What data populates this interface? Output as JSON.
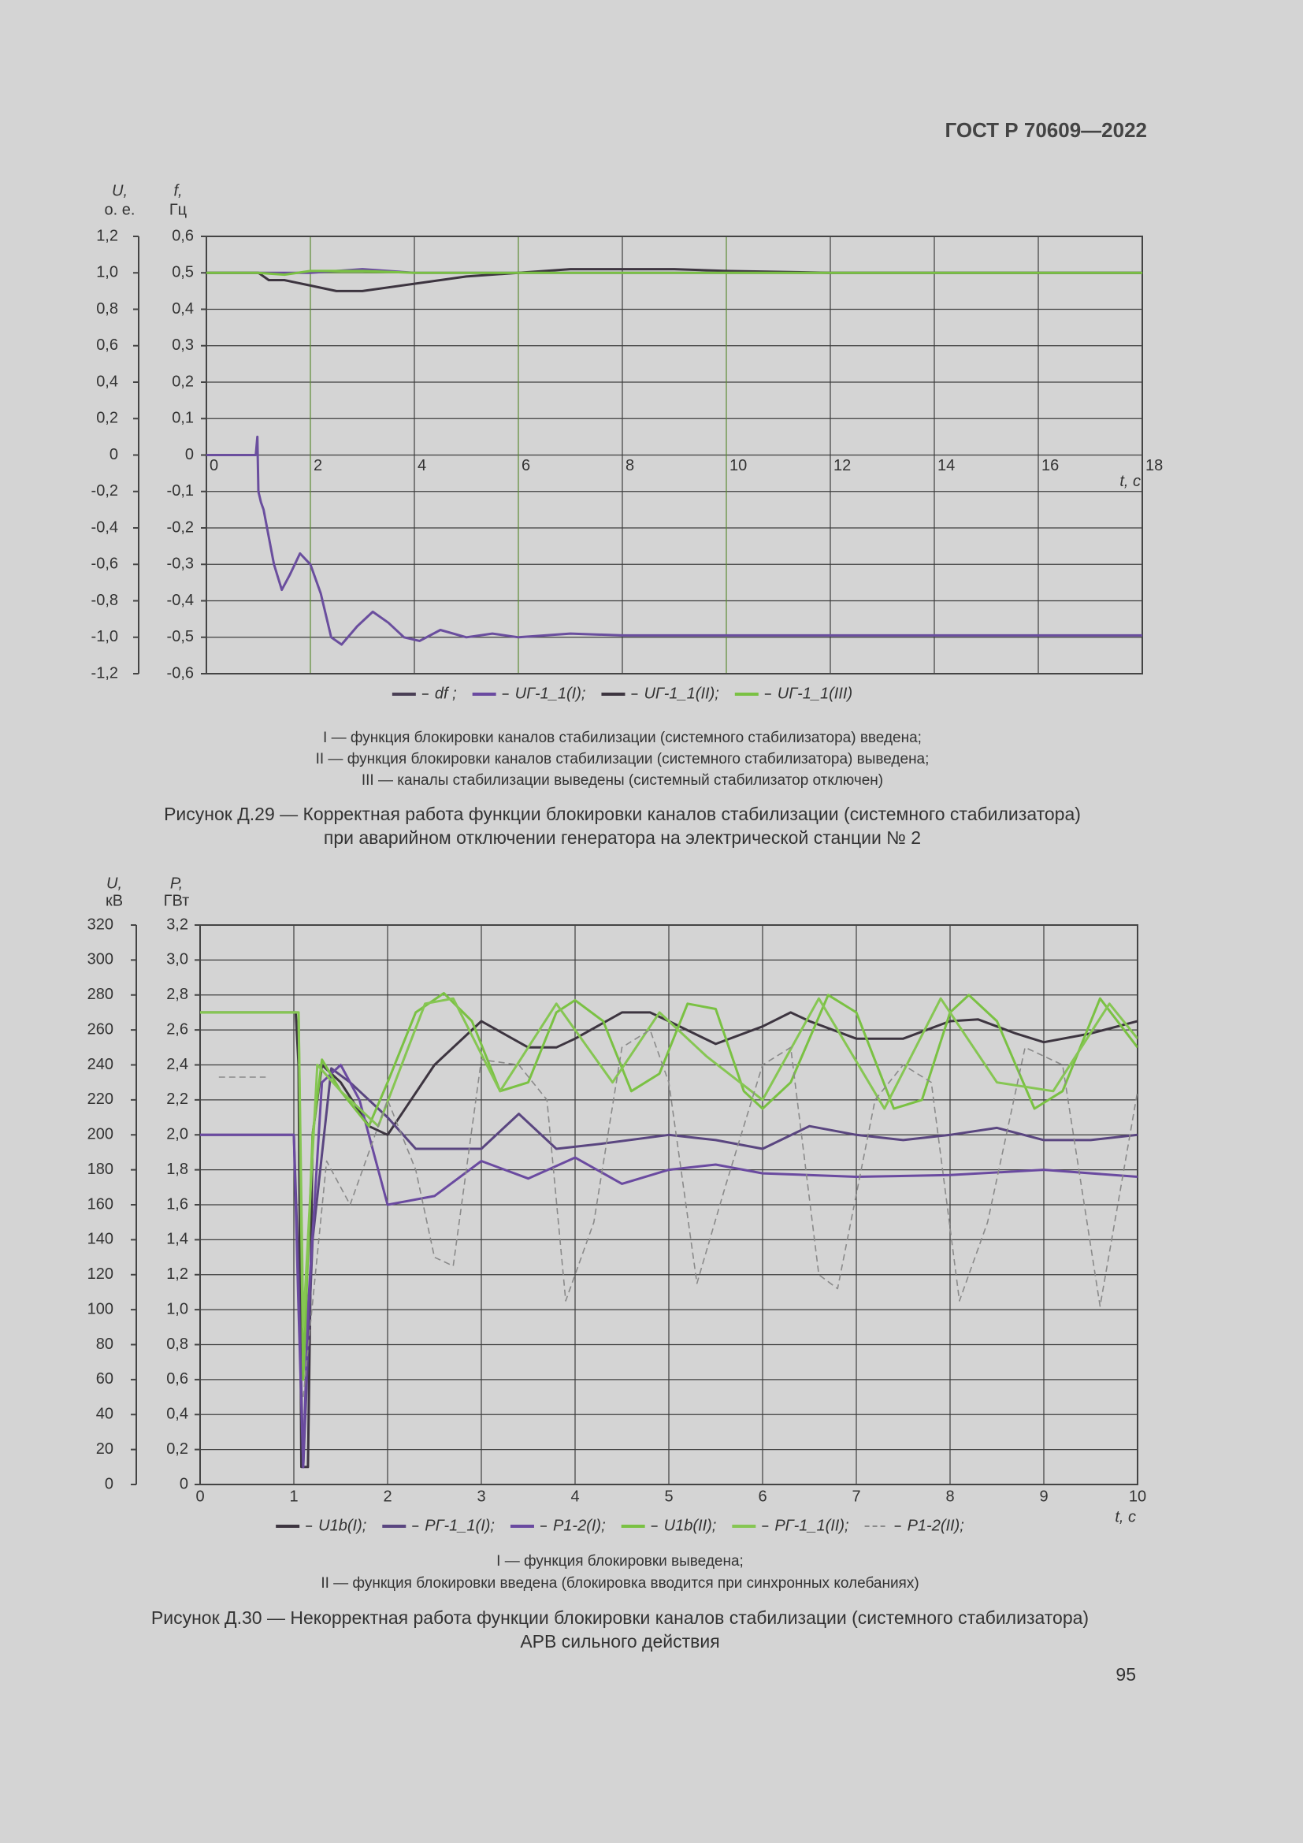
{
  "header": "ГОСТ Р 70609—2022",
  "page_number": "95",
  "chart_data": [
    {
      "type": "line",
      "y_label": [
        "U,",
        "о. е."
      ],
      "y2_label": [
        "f,",
        "Гц"
      ],
      "x_label": "t, с",
      "xlim": [
        0,
        18
      ],
      "xticks": [
        0,
        2,
        4,
        6,
        8,
        10,
        12,
        14,
        16,
        18
      ],
      "ylim": [
        -1.2,
        1.2
      ],
      "yticks": [
        {
          "value": -1.2,
          "label": "-1,2"
        },
        {
          "value": -1.0,
          "label": "-1,0"
        },
        {
          "value": -0.8,
          "label": "-0,8"
        },
        {
          "value": -0.6,
          "label": "-0,6"
        },
        {
          "value": -0.4,
          "label": "-0,4"
        },
        {
          "value": -0.2,
          "label": "-0,2"
        },
        0,
        {
          "value": 0.2,
          "label": "0,2"
        },
        {
          "value": 0.4,
          "label": "0,4"
        },
        {
          "value": 0.6,
          "label": "0,6"
        },
        {
          "value": 0.8,
          "label": "0,8"
        },
        {
          "value": 1.0,
          "label": "1,0"
        },
        {
          "value": 1.2,
          "label": "1,2"
        }
      ],
      "y2lim": [
        -0.6,
        0.6
      ],
      "y2ticks": [
        {
          "value": -0.6,
          "label": "-0,6"
        },
        {
          "value": -0.5,
          "label": "-0,5"
        },
        {
          "value": -0.4,
          "label": "-0,4"
        },
        {
          "value": -0.3,
          "label": "-0,3"
        },
        {
          "value": -0.2,
          "label": "-0,2"
        },
        {
          "value": -0.1,
          "label": "-0,1"
        },
        0,
        {
          "value": 0.1,
          "label": "0,1"
        },
        {
          "value": 0.2,
          "label": "0,2"
        },
        {
          "value": 0.3,
          "label": "0,3"
        },
        {
          "value": 0.4,
          "label": "0,4"
        },
        {
          "value": 0.5,
          "label": "0,5"
        },
        {
          "value": 0.6,
          "label": "0,6"
        }
      ],
      "grid": true,
      "series": [
        {
          "name": "df ;",
          "color": "#6a4e9e",
          "legend_color": "#4a3f55",
          "axis": "y2",
          "x": [
            0,
            0.95,
            0.98,
            1.0,
            1.05,
            1.1,
            1.3,
            1.45,
            1.6,
            1.8,
            2.0,
            2.2,
            2.4,
            2.6,
            2.9,
            3.2,
            3.5,
            3.8,
            4.1,
            4.5,
            5,
            5.5,
            6,
            7,
            8,
            10,
            12,
            14,
            16,
            18
          ],
          "values": [
            0,
            0,
            0.05,
            -0.1,
            -0.13,
            -0.15,
            -0.3,
            -0.37,
            -0.33,
            -0.27,
            -0.3,
            -0.38,
            -0.5,
            -0.52,
            -0.47,
            -0.43,
            -0.46,
            -0.5,
            -0.51,
            -0.48,
            -0.5,
            -0.49,
            -0.5,
            -0.49,
            -0.495,
            -0.495,
            -0.495,
            -0.495,
            -0.495,
            -0.495
          ]
        },
        {
          "name": "UГ-1_1(I);",
          "color": "#6a4aa0",
          "x": [
            0,
            1,
            2,
            3,
            4,
            18
          ],
          "values": [
            1.0,
            1.0,
            1.0,
            1.02,
            1.0,
            1.0
          ]
        },
        {
          "name": "UГ-1_1(II);",
          "color": "#3d3540",
          "x": [
            0,
            1,
            1.2,
            1.5,
            2,
            2.5,
            3,
            4,
            5,
            6,
            7,
            8,
            9,
            10,
            12,
            14,
            18
          ],
          "values": [
            1.0,
            1.0,
            0.96,
            0.96,
            0.93,
            0.9,
            0.9,
            0.94,
            0.98,
            1.0,
            1.02,
            1.02,
            1.02,
            1.01,
            1.0,
            1.0,
            1.0
          ]
        },
        {
          "name": "UГ-1_1(III)",
          "color": "#7ac143",
          "x": [
            0,
            1,
            1.5,
            2,
            3,
            4,
            6,
            18
          ],
          "values": [
            1.0,
            1.0,
            0.99,
            1.01,
            1.01,
            1.0,
            1.0,
            1.0
          ]
        }
      ],
      "notes": [
        "I — функция блокировки каналов стабилизации (системного стабилизатора) введена;",
        "II — функция блокировки каналов стабилизации (системного стабилизатора) выведена;",
        "III — каналы стабилизации выведены (системный стабилизатор отключен)"
      ],
      "caption": [
        "Рисунок Д.29 — Корректная работа функции блокировки каналов стабилизации (системного стабилизатора)",
        "при аварийном отключении генератора на электрической станции № 2"
      ]
    },
    {
      "type": "line",
      "y_label": [
        "U,",
        "кВ"
      ],
      "y2_label": [
        "P,",
        "ГВт"
      ],
      "x_label": "t, с",
      "xlim": [
        0,
        10
      ],
      "xticks": [
        0,
        1,
        2,
        3,
        4,
        5,
        6,
        7,
        8,
        9,
        10
      ],
      "ylim": [
        0,
        320
      ],
      "yticks": [
        0,
        20,
        40,
        60,
        80,
        100,
        120,
        140,
        160,
        180,
        200,
        220,
        240,
        260,
        280,
        300,
        320
      ],
      "y2lim": [
        0,
        3.2
      ],
      "y2ticks": [
        0,
        {
          "value": 0.2,
          "label": "0,2"
        },
        {
          "value": 0.4,
          "label": "0,4"
        },
        {
          "value": 0.6,
          "label": "0,6"
        },
        {
          "value": 0.8,
          "label": "0,8"
        },
        {
          "value": 1.0,
          "label": "1,0"
        },
        {
          "value": 1.2,
          "label": "1,2"
        },
        {
          "value": 1.4,
          "label": "1,4"
        },
        {
          "value": 1.6,
          "label": "1,6"
        },
        {
          "value": 1.8,
          "label": "1,8"
        },
        {
          "value": 2.0,
          "label": "2,0"
        },
        {
          "value": 2.2,
          "label": "2,2"
        },
        {
          "value": 2.4,
          "label": "2,4"
        },
        {
          "value": 2.6,
          "label": "2,6"
        },
        {
          "value": 2.8,
          "label": "2,8"
        },
        {
          "value": 3.0,
          "label": "3,0"
        },
        {
          "value": 3.2,
          "label": "3,2"
        }
      ],
      "grid": true,
      "series": [
        {
          "name": "U1b(I);",
          "color": "#3d3540",
          "x": [
            0,
            1.02,
            1.05,
            1.08,
            1.15,
            1.2,
            1.3,
            1.5,
            1.8,
            2,
            2.5,
            3,
            3.5,
            3.8,
            4,
            4.5,
            4.8,
            5,
            5.5,
            6,
            6.3,
            6.5,
            7,
            7.5,
            8,
            8.3,
            8.7,
            9,
            9.5,
            10
          ],
          "values": [
            270,
            270,
            240,
            10,
            10,
            200,
            240,
            230,
            205,
            200,
            240,
            265,
            250,
            250,
            255,
            270,
            270,
            265,
            252,
            262,
            270,
            265,
            255,
            255,
            265,
            266,
            258,
            253,
            258,
            265
          ]
        },
        {
          "name": "PГ-1_1(I);",
          "color": "#5a4680",
          "axis": "y2",
          "x": [
            0,
            1,
            1.05,
            1.1,
            1.2,
            1.4,
            1.6,
            2,
            2.3,
            3,
            3.4,
            3.8,
            4.3,
            5,
            5.5,
            6,
            6.5,
            7,
            7.5,
            8,
            8.5,
            9,
            9.5,
            10
          ],
          "values": [
            2.0,
            2.0,
            1.2,
            0.1,
            1.4,
            2.38,
            2.3,
            2.1,
            1.92,
            1.92,
            2.12,
            1.92,
            1.95,
            2.0,
            1.97,
            1.92,
            2.05,
            2.0,
            1.97,
            2.0,
            2.04,
            1.97,
            1.97,
            2.0
          ]
        },
        {
          "name": "P1-2(I);",
          "color": "#6a4aa0",
          "axis": "y2",
          "x": [
            0,
            1,
            1.05,
            1.1,
            1.15,
            1.3,
            1.5,
            1.7,
            2,
            2.5,
            3,
            3.5,
            4,
            4.5,
            5,
            5.5,
            6,
            7,
            8,
            9,
            10
          ],
          "values": [
            2.0,
            2.0,
            1.0,
            0.1,
            1.0,
            2.3,
            2.4,
            2.2,
            1.6,
            1.65,
            1.85,
            1.75,
            1.87,
            1.72,
            1.8,
            1.83,
            1.78,
            1.76,
            1.77,
            1.8,
            1.76
          ]
        },
        {
          "name": "U1b(II);",
          "color": "#7ac143",
          "x": [
            0,
            1.05,
            1.1,
            1.2,
            1.3,
            1.5,
            1.8,
            2,
            2.3,
            2.6,
            2.9,
            3.2,
            3.5,
            3.8,
            4,
            4.3,
            4.6,
            4.9,
            5.2,
            5.5,
            5.8,
            6,
            6.3,
            6.7,
            7,
            7.4,
            7.7,
            8,
            8.2,
            8.5,
            8.9,
            9.2,
            9.6,
            10
          ],
          "values": [
            270,
            270,
            60,
            200,
            243,
            225,
            205,
            230,
            270,
            281,
            265,
            225,
            230,
            270,
            277,
            265,
            225,
            235,
            275,
            272,
            225,
            215,
            230,
            280,
            270,
            215,
            220,
            270,
            280,
            265,
            215,
            225,
            278,
            250
          ]
        },
        {
          "name": "PГ-1_1(II);",
          "color": "#86c653",
          "axis": "y2",
          "x": [
            0,
            1.05,
            1.1,
            1.25,
            1.5,
            1.9,
            2.4,
            2.7,
            3.2,
            3.8,
            4.4,
            4.9,
            5.4,
            6,
            6.6,
            7.3,
            7.9,
            8.5,
            9.1,
            9.7,
            10
          ],
          "values": [
            2.7,
            2.7,
            0.9,
            2.4,
            2.25,
            2.05,
            2.75,
            2.78,
            2.25,
            2.75,
            2.3,
            2.7,
            2.45,
            2.2,
            2.78,
            2.15,
            2.78,
            2.3,
            2.25,
            2.75,
            2.55
          ]
        },
        {
          "name": "P1-2(II);",
          "color": "#8a8a8a",
          "axis": "y2",
          "dashed": true,
          "x": [
            0.2,
            0.7,
            0.85,
            1.1,
            1.35,
            1.6,
            2,
            2.3,
            2.5,
            2.7,
            3,
            3.4,
            3.7,
            3.9,
            4.2,
            4.5,
            4.8,
            5,
            5.3,
            5.6,
            6,
            6.3,
            6.6,
            6.8,
            7.2,
            7.5,
            7.8,
            8.1,
            8.4,
            8.8,
            9.2,
            9.6,
            10
          ],
          "values": [
            2.33,
            2.33,
            null,
            0.5,
            1.85,
            1.6,
            2.2,
            1.8,
            1.3,
            1.25,
            2.43,
            2.4,
            2.2,
            1.05,
            1.5,
            2.5,
            2.6,
            2.3,
            1.15,
            1.7,
            2.4,
            2.5,
            1.2,
            1.12,
            2.2,
            2.4,
            2.3,
            1.05,
            1.5,
            2.5,
            2.4,
            1.02,
            2.25
          ]
        }
      ],
      "notes": [
        "I — функция блокировки выведена;",
        "II — функция блокировки введена (блокировка вводится при синхронных колебаниях)"
      ],
      "caption": [
        "Рисунок Д.30 — Некорректная работа функции блокировки каналов стабилизации (системного стабилизатора)",
        "АРВ сильного действия"
      ]
    }
  ]
}
